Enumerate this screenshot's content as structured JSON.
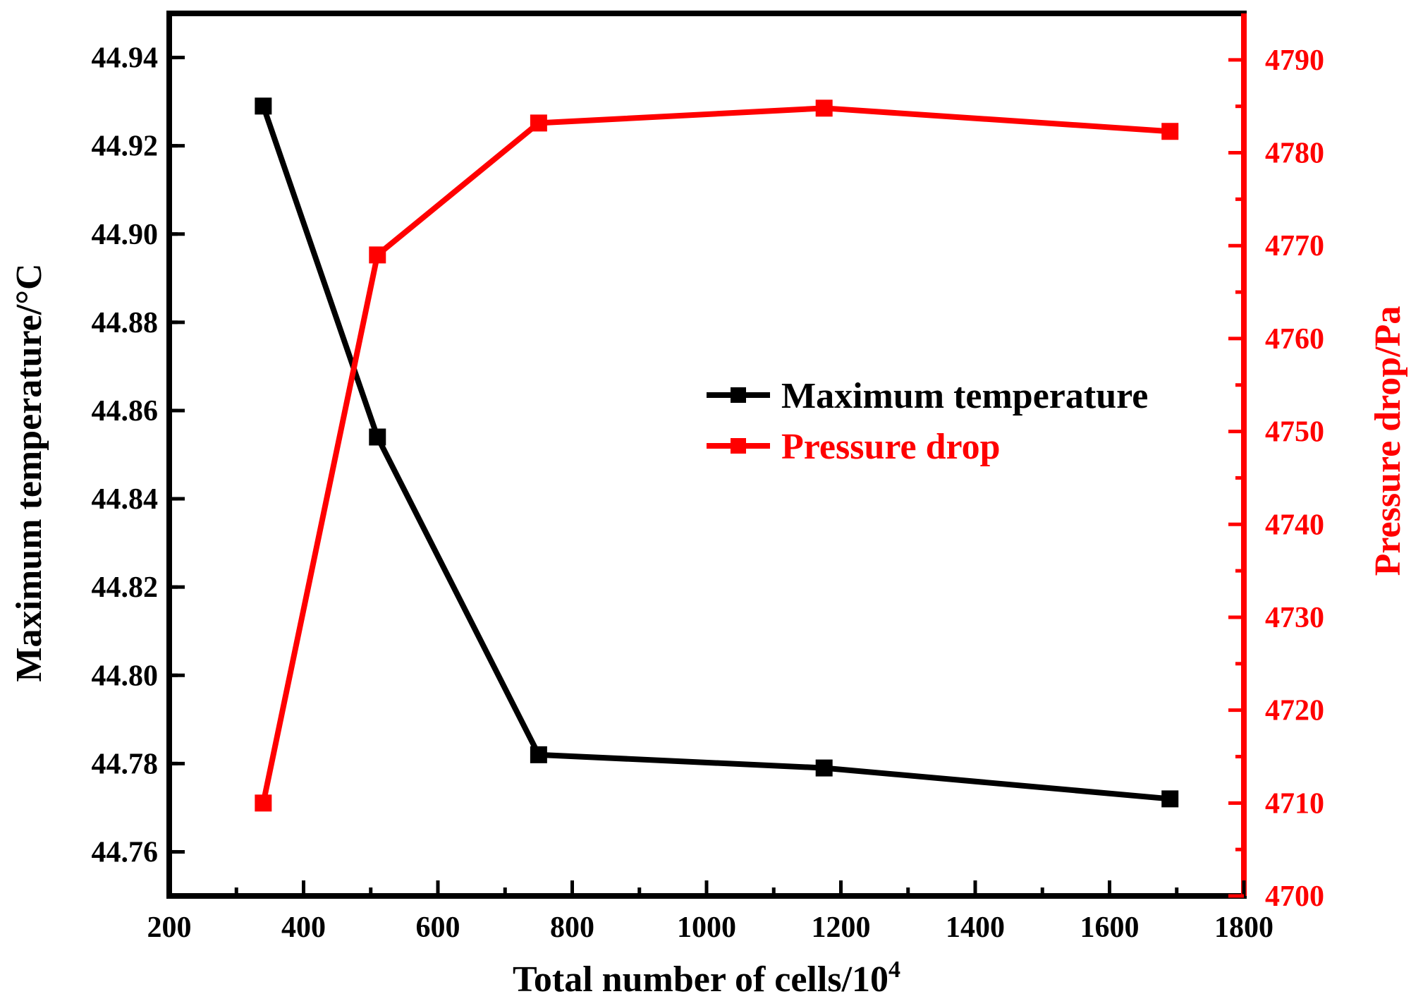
{
  "chart_data": {
    "type": "line",
    "title": "",
    "xlabel": "Total number of cells/10",
    "xlabel_sup": "4",
    "ylabel_left": "Maximum temperature/°C",
    "ylabel_right": "Pressure drop/Pa",
    "xlim": [
      200,
      1800
    ],
    "ylim_left": [
      44.75,
      44.95
    ],
    "ylim_right": [
      4700,
      4795
    ],
    "x_ticks": [
      "200",
      "400",
      "600",
      "800",
      "1000",
      "1200",
      "1400",
      "1600",
      "1800"
    ],
    "y_left_ticks": [
      "44.76",
      "44.78",
      "44.80",
      "44.82",
      "44.84",
      "44.86",
      "44.88",
      "44.90",
      "44.92",
      "44.94"
    ],
    "y_right_ticks": [
      "4700",
      "4710",
      "4720",
      "4730",
      "4740",
      "4750",
      "4760",
      "4770",
      "4780",
      "4790"
    ],
    "grid": false,
    "legend_position": "center-right",
    "series": [
      {
        "name": "Maximum temperature",
        "axis": "left",
        "color": "#000000",
        "x": [
          340,
          510,
          750,
          1175,
          1690
        ],
        "values": [
          44.929,
          44.854,
          44.782,
          44.779,
          44.772
        ]
      },
      {
        "name": "Pressure drop",
        "axis": "right",
        "color": "#ff0000",
        "x": [
          340,
          510,
          750,
          1175,
          1690
        ],
        "values": [
          4710,
          4769,
          4783.2,
          4784.8,
          4782.3
        ]
      }
    ]
  }
}
